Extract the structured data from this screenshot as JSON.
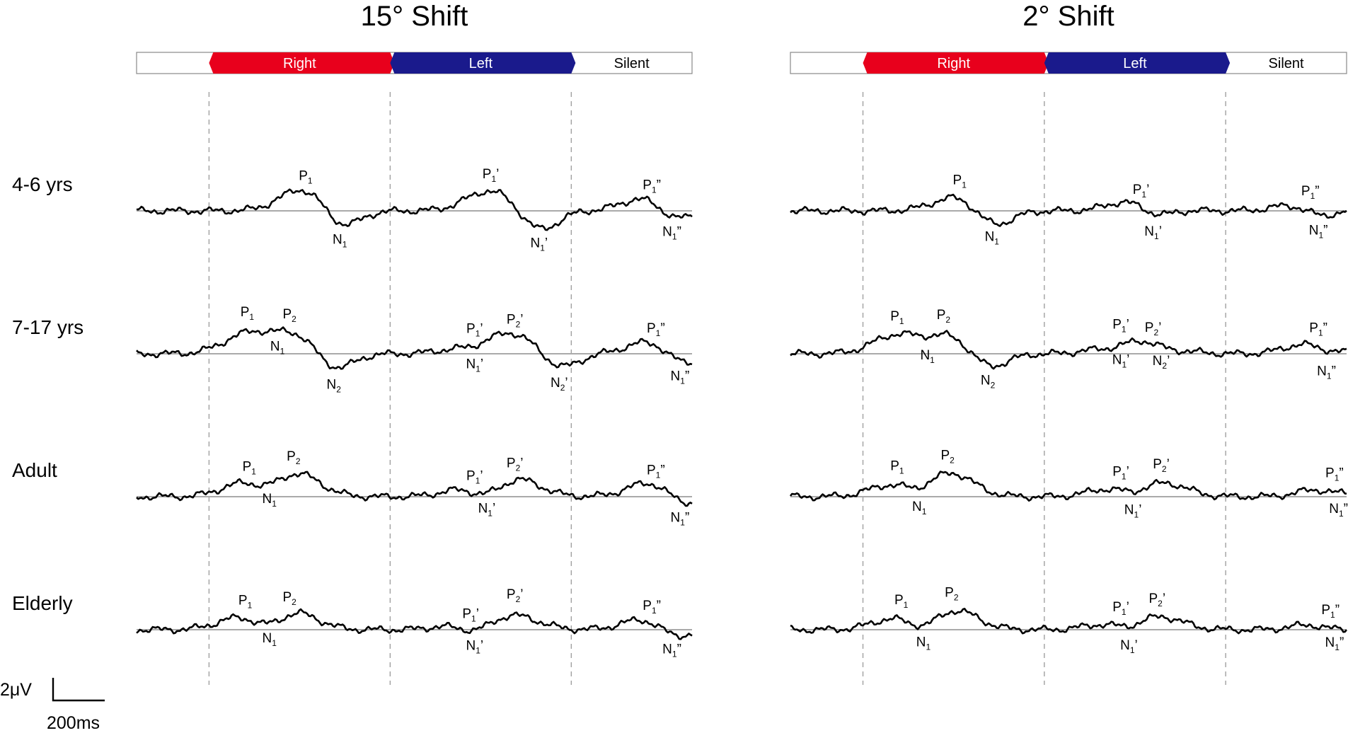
{
  "chart_data": {
    "type": "line",
    "panels": [
      {
        "title": "15° Shift",
        "segments": [
          {
            "label": "Right",
            "color": "#e8001c",
            "text_color": "#ffffff"
          },
          {
            "label": "Left",
            "color": "#1a1a8c",
            "text_color": "#ffffff"
          },
          {
            "label": "Silent",
            "color": "#ffffff",
            "text_color": "#000000"
          }
        ],
        "rows": [
          {
            "group": "4-6 yrs",
            "components": [
              {
                "base": "P",
                "sub": "1",
                "suf": "",
                "t": 240,
                "dy": -1.8
              },
              {
                "base": "N",
                "sub": "1",
                "suf": "",
                "t": 325,
                "dy": -1.5
              },
              {
                "base": "P",
                "sub": "1",
                "suf": "’",
                "t": 700,
                "dy": -1.5
              },
              {
                "base": "N",
                "sub": "1",
                "suf": "’",
                "t": 820,
                "dy": -1.5
              },
              {
                "base": "P",
                "sub": "1",
                "suf": "”",
                "t": 1100,
                "dy": -1.2
              },
              {
                "base": "N",
                "sub": "1",
                "suf": "”",
                "t": 1150,
                "dy": -1.2
              }
            ]
          },
          {
            "group": "7-17 yrs",
            "components": [
              {
                "base": "P",
                "sub": "1",
                "suf": "",
                "t": 95,
                "dy": 1.3
              },
              {
                "base": "P",
                "sub": "2",
                "suf": "",
                "t": 200,
                "dy": 2.0
              },
              {
                "base": "N",
                "sub": "1",
                "suf": "",
                "t": 170,
                "dy": 0.3
              },
              {
                "base": "N",
                "sub": "2",
                "suf": "",
                "t": 310,
                "dy": -1.2
              },
              {
                "base": "P",
                "sub": "1",
                "suf": "’",
                "t": 660,
                "dy": 0.8
              },
              {
                "base": "P",
                "sub": "2",
                "suf": "’",
                "t": 760,
                "dy": 1.3
              },
              {
                "base": "N",
                "sub": "1",
                "suf": "’",
                "t": 660,
                "dy": -0.4
              },
              {
                "base": "N",
                "sub": "2",
                "suf": "’",
                "t": 870,
                "dy": -1.0
              },
              {
                "base": "P",
                "sub": "1",
                "suf": "”",
                "t": 1110,
                "dy": 1.0
              },
              {
                "base": "N",
                "sub": "1",
                "suf": "”",
                "t": 1170,
                "dy": -1.1
              }
            ]
          },
          {
            "group": "Adult",
            "components": [
              {
                "base": "P",
                "sub": "1",
                "suf": "",
                "t": 100,
                "dy": 1.1
              },
              {
                "base": "P",
                "sub": "2",
                "suf": "",
                "t": 210,
                "dy": 2.0
              },
              {
                "base": "N",
                "sub": "1",
                "suf": "",
                "t": 150,
                "dy": -0.9
              },
              {
                "base": "P",
                "sub": "1",
                "suf": "’",
                "t": 660,
                "dy": 0.8
              },
              {
                "base": "P",
                "sub": "2",
                "suf": "’",
                "t": 760,
                "dy": 1.3
              },
              {
                "base": "N",
                "sub": "1",
                "suf": "’",
                "t": 690,
                "dy": -1.2
              },
              {
                "base": "P",
                "sub": "1",
                "suf": "”",
                "t": 1110,
                "dy": 1.2
              },
              {
                "base": "N",
                "sub": "1",
                "suf": "”",
                "t": 1170,
                "dy": -0.9
              }
            ]
          },
          {
            "group": "Elderly",
            "components": [
              {
                "base": "P",
                "sub": "1",
                "suf": "",
                "t": 90,
                "dy": 0.9
              },
              {
                "base": "P",
                "sub": "2",
                "suf": "",
                "t": 200,
                "dy": 1.6
              },
              {
                "base": "N",
                "sub": "1",
                "suf": "",
                "t": 150,
                "dy": -1.2
              },
              {
                "base": "P",
                "sub": "1",
                "suf": "’",
                "t": 650,
                "dy": 0.7
              },
              {
                "base": "P",
                "sub": "2",
                "suf": "’",
                "t": 760,
                "dy": 0.8
              },
              {
                "base": "N",
                "sub": "1",
                "suf": "’",
                "t": 660,
                "dy": -1.0
              },
              {
                "base": "P",
                "sub": "1",
                "suf": "”",
                "t": 1100,
                "dy": 0.9
              },
              {
                "base": "N",
                "sub": "1",
                "suf": "”",
                "t": 1150,
                "dy": -0.9
              }
            ]
          }
        ]
      },
      {
        "title": "2° Shift",
        "segments": [
          {
            "label": "Right",
            "color": "#e8001c",
            "text_color": "#ffffff"
          },
          {
            "label": "Left",
            "color": "#1a1a8c",
            "text_color": "#ffffff"
          },
          {
            "label": "Silent",
            "color": "#ffffff",
            "text_color": "#000000"
          }
        ],
        "rows": [
          {
            "group": "4-6 yrs",
            "components": [
              {
                "base": "P",
                "sub": "1",
                "suf": "",
                "t": 240,
                "dy": -1.0
              },
              {
                "base": "N",
                "sub": "1",
                "suf": "",
                "t": 320,
                "dy": -1.3
              },
              {
                "base": "P",
                "sub": "1",
                "suf": "’",
                "t": 690,
                "dy": -1.2
              },
              {
                "base": "N",
                "sub": "1",
                "suf": "’",
                "t": 720,
                "dy": -1.2
              },
              {
                "base": "P",
                "sub": "1",
                "suf": "”",
                "t": 1110,
                "dy": -0.9
              },
              {
                "base": "N",
                "sub": "1",
                "suf": "”",
                "t": 1130,
                "dy": -1.2
              }
            ]
          },
          {
            "group": "7-17 yrs",
            "components": [
              {
                "base": "P",
                "sub": "1",
                "suf": "",
                "t": 85,
                "dy": 1.3
              },
              {
                "base": "P",
                "sub": "2",
                "suf": "",
                "t": 200,
                "dy": 1.7
              },
              {
                "base": "N",
                "sub": "1",
                "suf": "",
                "t": 160,
                "dy": 0.3
              },
              {
                "base": "N",
                "sub": "2",
                "suf": "",
                "t": 310,
                "dy": -1.0
              },
              {
                "base": "P",
                "sub": "1",
                "suf": "’",
                "t": 640,
                "dy": 0.8
              },
              {
                "base": "P",
                "sub": "2",
                "suf": "’",
                "t": 720,
                "dy": 1.3
              },
              {
                "base": "N",
                "sub": "1",
                "suf": "’",
                "t": 640,
                "dy": -0.6
              },
              {
                "base": "N",
                "sub": "2",
                "suf": "’",
                "t": 740,
                "dy": -0.7
              },
              {
                "base": "P",
                "sub": "1",
                "suf": "”",
                "t": 1130,
                "dy": 1.3
              },
              {
                "base": "N",
                "sub": "1",
                "suf": "”",
                "t": 1150,
                "dy": -0.8
              }
            ]
          },
          {
            "group": "Adult",
            "components": [
              {
                "base": "P",
                "sub": "1",
                "suf": "",
                "t": 85,
                "dy": 0.9
              },
              {
                "base": "P",
                "sub": "2",
                "suf": "",
                "t": 210,
                "dy": 2.0
              },
              {
                "base": "N",
                "sub": "1",
                "suf": "",
                "t": 140,
                "dy": -0.7
              },
              {
                "base": "P",
                "sub": "1",
                "suf": "’",
                "t": 640,
                "dy": 0.8
              },
              {
                "base": "P",
                "sub": "2",
                "suf": "’",
                "t": 740,
                "dy": 0.9
              },
              {
                "base": "N",
                "sub": "1",
                "suf": "’",
                "t": 670,
                "dy": -0.8
              },
              {
                "base": "P",
                "sub": "1",
                "suf": "”",
                "t": 1170,
                "dy": 1.2
              },
              {
                "base": "N",
                "sub": "1",
                "suf": "”",
                "t": 1180,
                "dy": -0.8
              }
            ]
          },
          {
            "group": "Elderly",
            "components": [
              {
                "base": "P",
                "sub": "1",
                "suf": "",
                "t": 95,
                "dy": 0.9
              },
              {
                "base": "P",
                "sub": "2",
                "suf": "",
                "t": 220,
                "dy": 1.6
              },
              {
                "base": "N",
                "sub": "1",
                "suf": "",
                "t": 150,
                "dy": -1.0
              },
              {
                "base": "P",
                "sub": "1",
                "suf": "’",
                "t": 640,
                "dy": 0.7
              },
              {
                "base": "P",
                "sub": "2",
                "suf": "’",
                "t": 730,
                "dy": 0.8
              },
              {
                "base": "N",
                "sub": "1",
                "suf": "’",
                "t": 660,
                "dy": -0.9
              },
              {
                "base": "P",
                "sub": "1",
                "suf": "”",
                "t": 1160,
                "dy": 0.9
              },
              {
                "base": "N",
                "sub": "1",
                "suf": "”",
                "t": 1170,
                "dy": -0.8
              }
            ]
          }
        ]
      }
    ],
    "scale_bar": {
      "voltage": "2μV",
      "time": "200ms"
    }
  }
}
